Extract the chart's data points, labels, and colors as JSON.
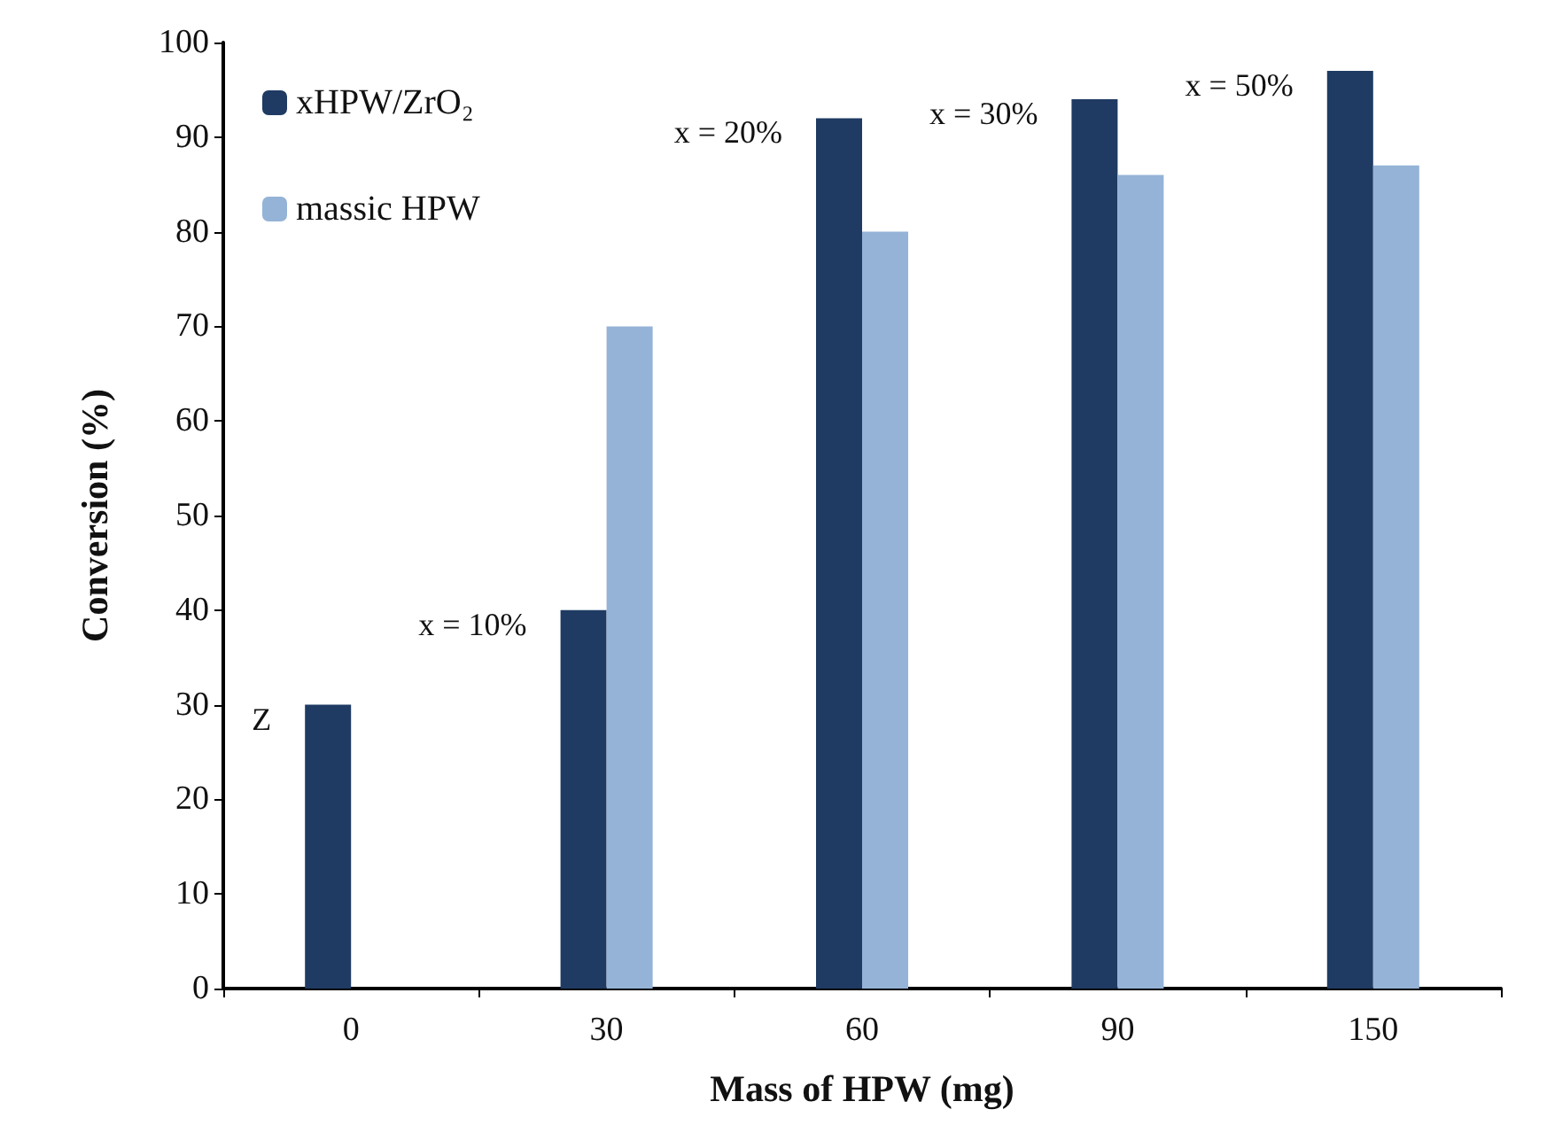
{
  "chart_data": {
    "type": "bar",
    "xlabel": "Mass of HPW (mg)",
    "ylabel": "Conversion (%)",
    "categories": [
      "0",
      "30",
      "60",
      "90",
      "150"
    ],
    "series": [
      {
        "name": "xHPW/ZrO₂",
        "color": "#1f3b63",
        "values": [
          30,
          40,
          92,
          94,
          97
        ]
      },
      {
        "name": "massic HPW",
        "color": "#95b3d7",
        "values": [
          null,
          70,
          80,
          86,
          87
        ]
      }
    ],
    "ylim": [
      0,
      100
    ],
    "yticks": [
      0,
      10,
      20,
      30,
      40,
      50,
      60,
      70,
      80,
      90,
      100
    ],
    "grid": false,
    "legend": "top left",
    "annotations": [
      {
        "text": "Z",
        "x": "0",
        "y": 30
      },
      {
        "text": "x = 10%",
        "x": "30",
        "y": 40
      },
      {
        "text": "x = 20%",
        "x": "60",
        "y": 92
      },
      {
        "text": "x = 30%",
        "x": "90",
        "y": 94
      },
      {
        "text": "x = 50%",
        "x": "150",
        "y": 97
      }
    ]
  }
}
